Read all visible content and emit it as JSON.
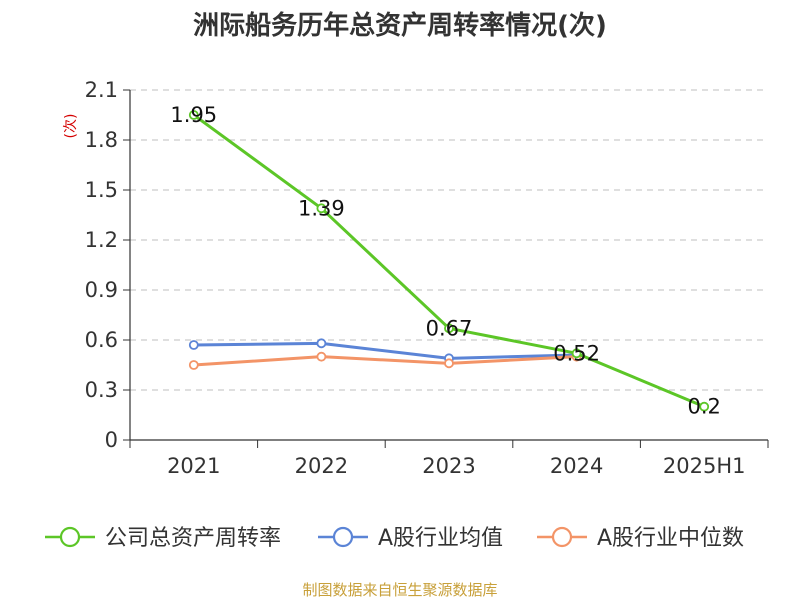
{
  "chart_data": {
    "type": "line",
    "title": "洲际船务历年总资产周转率情况(次)",
    "ylabel": "(次)",
    "xlabel": "",
    "categories": [
      "2021",
      "2022",
      "2023",
      "2024",
      "2025H1"
    ],
    "ylim": [
      0,
      2.1
    ],
    "yticks": [
      "0",
      "0.3",
      "0.6",
      "0.9",
      "1.2",
      "1.5",
      "1.8",
      "2.1"
    ],
    "grid": true,
    "legend_position": "bottom",
    "series": [
      {
        "name": "公司总资产周转率",
        "color": "#5cc627",
        "values": [
          1.95,
          1.39,
          0.67,
          0.52,
          0.2
        ],
        "labels": [
          "1.95",
          "1.39",
          "0.67",
          "0.52",
          "0.2"
        ]
      },
      {
        "name": "A股行业均值",
        "color": "#5b84d6",
        "values": [
          0.57,
          0.58,
          0.49,
          0.51,
          null
        ]
      },
      {
        "name": "A股行业中位数",
        "color": "#f39467",
        "values": [
          0.45,
          0.5,
          0.46,
          0.5,
          null
        ]
      }
    ]
  },
  "source": "制图数据来自恒生聚源数据库"
}
